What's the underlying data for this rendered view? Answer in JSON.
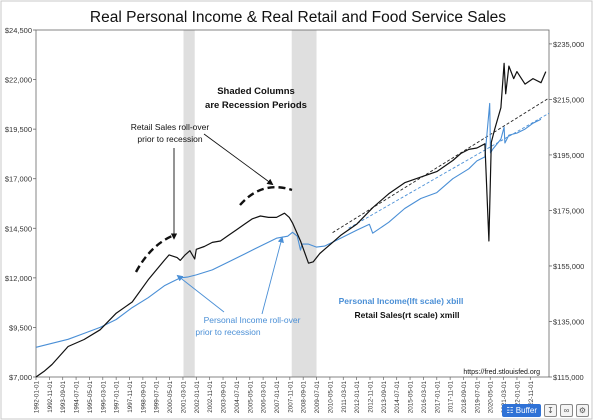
{
  "chart_data": {
    "type": "line",
    "title": "Real Personal Income & Real Retail and Food Service Sales",
    "left_axis": {
      "ylim": [
        7000,
        24500
      ],
      "ticks": [
        "$7,000",
        "$9,500",
        "$12,000",
        "$14,500",
        "$17,000",
        "$19,500",
        "$22,000",
        "$24,500"
      ]
    },
    "right_axis": {
      "ylim": [
        115000,
        240000
      ],
      "ticks": [
        "$115,000",
        "$135,000",
        "$155,000",
        "$175,000",
        "$195,000",
        "$215,000",
        "$235,000"
      ]
    },
    "x_ticks": [
      "1992-01-01",
      "1992-11-01",
      "1993-09-01",
      "1994-07-01",
      "1995-05-01",
      "1996-03-01",
      "1997-01-01",
      "1997-11-01",
      "1998-09-01",
      "1999-07-01",
      "2000-05-01",
      "2001-03-01",
      "2002-01-01",
      "2002-11-01",
      "2003-09-01",
      "2004-07-01",
      "2005-05-01",
      "2006-03-01",
      "2007-01-01",
      "2007-11-01",
      "2008-09-01",
      "2009-07-01",
      "2010-05-01",
      "2011-03-01",
      "2012-01-01",
      "2012-11-01",
      "2013-09-01",
      "2014-07-01",
      "2015-05-01",
      "2016-03-01",
      "2017-01-01",
      "2017-11-01",
      "2018-09-01",
      "2019-07-01",
      "2020-05-01",
      "2021-03-01",
      "2022-01-01",
      "2022-11-01"
    ],
    "recessions": [
      {
        "start": 2001.2,
        "end": 2001.9
      },
      {
        "start": 2007.95,
        "end": 2009.5
      }
    ],
    "series": [
      {
        "name": "Personal Income(lft scale) xbill",
        "axis": "left",
        "color": "#4a8fd6",
        "x": [
          1992.0,
          1993.0,
          1994.0,
          1995.0,
          1996.0,
          1997.0,
          1998.0,
          1999.0,
          2000.0,
          2000.5,
          2001.0,
          2001.5,
          2002.0,
          2003.0,
          2004.0,
          2005.0,
          2006.0,
          2007.0,
          2007.7,
          2008.0,
          2008.3,
          2008.5,
          2008.6,
          2009.0,
          2009.5,
          2010.0,
          2011.0,
          2012.0,
          2012.8,
          2013.0,
          2014.0,
          2015.0,
          2016.0,
          2017.0,
          2018.0,
          2019.0,
          2019.5,
          2020.0,
          2020.3,
          2020.35,
          2020.5,
          2021.0,
          2021.2,
          2021.25,
          2021.5,
          2022.0,
          2022.5,
          2023.0,
          2023.5
        ],
        "y": [
          8500,
          8700,
          8900,
          9200,
          9500,
          9900,
          10500,
          11000,
          11600,
          11800,
          12000,
          12050,
          12150,
          12400,
          12800,
          13200,
          13600,
          14000,
          14100,
          14300,
          14100,
          13400,
          13700,
          13700,
          13550,
          13600,
          14000,
          14400,
          14700,
          14250,
          14800,
          15500,
          16000,
          16300,
          17000,
          17500,
          17900,
          18100,
          20800,
          18300,
          18500,
          19000,
          19600,
          18800,
          19200,
          19300,
          19500,
          19800,
          20000
        ]
      },
      {
        "name": "Retail Sales(rt scale) xmill",
        "axis": "right",
        "color": "#111111",
        "x": [
          1992.0,
          1992.5,
          1993.0,
          1994.0,
          1995.0,
          1996.0,
          1997.0,
          1998.0,
          1999.0,
          2000.0,
          2000.3,
          2000.8,
          2001.0,
          2001.3,
          2001.6,
          2001.9,
          2002.0,
          2002.5,
          2003.0,
          2003.5,
          2004.0,
          2004.5,
          2005.0,
          2005.5,
          2006.0,
          2006.5,
          2007.0,
          2007.5,
          2007.8,
          2008.0,
          2008.5,
          2009.0,
          2009.3,
          2009.7,
          2010.0,
          2010.5,
          2011.0,
          2012.0,
          2013.0,
          2014.0,
          2015.0,
          2016.0,
          2017.0,
          2018.0,
          2018.5,
          2019.0,
          2019.5,
          2020.0,
          2020.25,
          2020.4,
          2020.6,
          2021.0,
          2021.2,
          2021.3,
          2021.5,
          2021.8,
          2022.0,
          2022.5,
          2023.0,
          2023.5,
          2023.8
        ],
        "y": [
          115000,
          117000,
          119500,
          126000,
          128500,
          132000,
          138000,
          142000,
          150000,
          157000,
          159000,
          158000,
          157000,
          159000,
          160500,
          157500,
          161000,
          162000,
          163500,
          164000,
          166000,
          168000,
          170000,
          172000,
          173000,
          172500,
          172500,
          174000,
          172500,
          170500,
          164000,
          156000,
          156500,
          159500,
          161000,
          163500,
          166000,
          170000,
          176000,
          181000,
          185000,
          187000,
          189000,
          193000,
          195500,
          197000,
          197500,
          199000,
          164000,
          199500,
          204000,
          212000,
          228000,
          217000,
          227000,
          222500,
          225000,
          220500,
          222500,
          221000,
          225000
        ]
      }
    ],
    "trendlines": [
      {
        "axis": "left",
        "color": "#4a8fd6",
        "x": [
          2011.5,
          2024.0
        ],
        "y": [
          14500,
          20300
        ]
      },
      {
        "axis": "right",
        "color": "#222222",
        "x": [
          2010.5,
          2024.0
        ],
        "y": [
          167000,
          215500
        ]
      }
    ],
    "annotations": {
      "shaded": [
        "Shaded Columns",
        "are Recession Periods"
      ],
      "retail_rollover": [
        "Retail Sales roll-over",
        "prior to recession"
      ],
      "income_rollover": [
        "Personal Income roll-over",
        "prior to recession"
      ],
      "legend_income": "Personal Income(lft scale) xbill",
      "legend_retail": "Retail Sales(rt scale) xmill",
      "source": "https://fred.stlouisfed.org"
    },
    "grid": false
  },
  "toolbar": {
    "buffer_label": "Buffer",
    "buffer_color": "#2f72d6"
  }
}
